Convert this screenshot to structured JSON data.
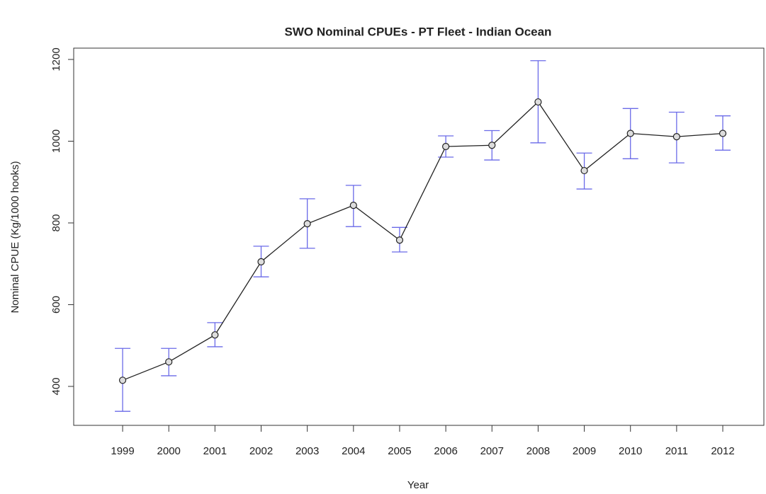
{
  "chart_data": {
    "type": "line",
    "title": "SWO Nominal CPUEs - PT Fleet - Indian Ocean",
    "x_label": "Year",
    "y_label": "Nominal CPUE (Kg/1000 hooks)",
    "x": [
      1999,
      2000,
      2001,
      2002,
      2003,
      2004,
      2005,
      2006,
      2007,
      2008,
      2009,
      2010,
      2011,
      2012
    ],
    "values": [
      415,
      460,
      526,
      705,
      798,
      843,
      758,
      987,
      990,
      1096,
      928,
      1019,
      1011,
      1019
    ],
    "lower": [
      339,
      426,
      497,
      668,
      738,
      791,
      729,
      961,
      954,
      996,
      883,
      957,
      947,
      978
    ],
    "upper": [
      493,
      493,
      556,
      743,
      859,
      892,
      789,
      1013,
      1026,
      1197,
      971,
      1080,
      1071,
      1062
    ],
    "color": "#222222",
    "error_color": "#6a6ae8",
    "xlim": [
      1997.94,
      2012.89
    ],
    "xticks": [
      1999,
      2000,
      2001,
      2002,
      2003,
      2004,
      2005,
      2006,
      2007,
      2008,
      2009,
      2010,
      2011,
      2012
    ],
    "ylim": [
      304.7,
      1227.7
    ],
    "yticks": [
      400,
      600,
      800,
      1000,
      1200
    ]
  }
}
